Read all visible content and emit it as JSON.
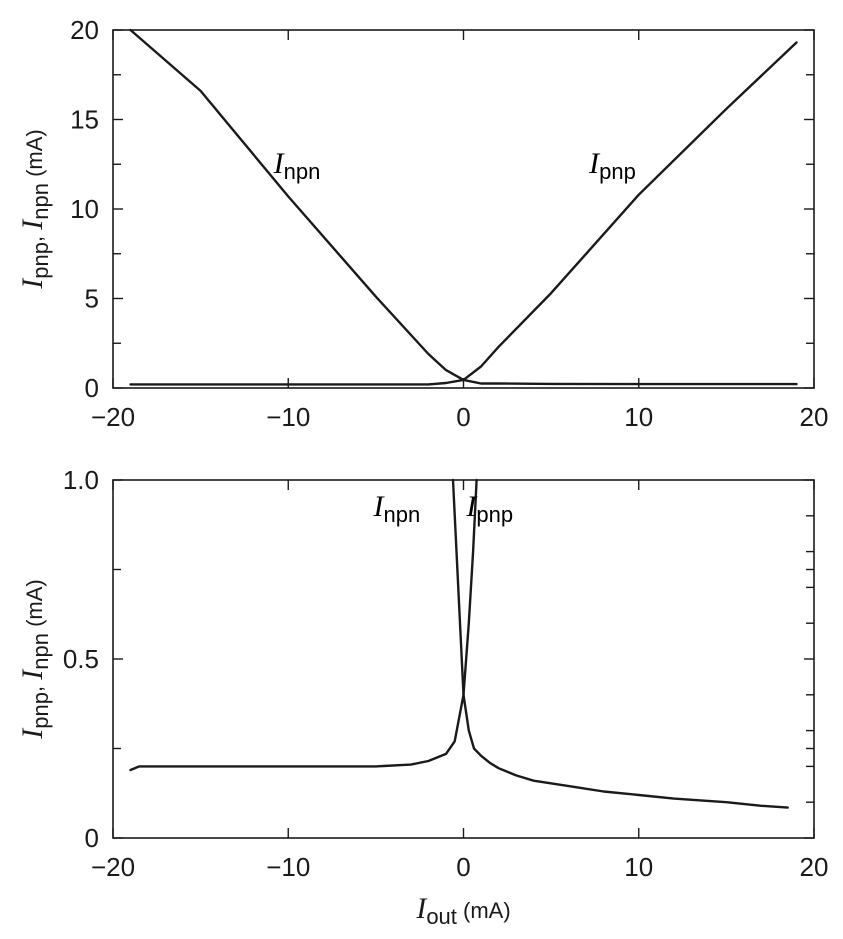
{
  "chart_data": [
    {
      "type": "line",
      "xlim": [
        -20,
        20
      ],
      "ylim": [
        0,
        20
      ],
      "x_ticks": [
        -20,
        -10,
        0,
        10,
        20
      ],
      "x_tick_labels": [
        "−20",
        "−10",
        "0",
        "10",
        "20"
      ],
      "y_ticks": [
        0,
        5,
        10,
        15,
        20
      ],
      "y_tick_labels": [
        "0",
        "5",
        "10",
        "15",
        "20"
      ],
      "ylabel": {
        "var1": "I",
        "sub1": "pnp",
        "sep": ", ",
        "var2": "I",
        "sub2": "npn",
        "unit": " (mA)"
      },
      "series": [
        {
          "name": "npn",
          "x": [
            -19,
            -15,
            -10,
            -5,
            -2,
            -1,
            0,
            1,
            2,
            5,
            10,
            15,
            19
          ],
          "y": [
            20,
            16.6,
            10.7,
            5.1,
            1.9,
            1.0,
            0.45,
            0.25,
            0.25,
            0.23,
            0.22,
            0.22,
            0.22
          ]
        },
        {
          "name": "pnp",
          "x": [
            -19,
            -15,
            -10,
            -5,
            -2,
            -1,
            0,
            1,
            2,
            5,
            10,
            15,
            19
          ],
          "y": [
            0.2,
            0.2,
            0.2,
            0.2,
            0.2,
            0.28,
            0.45,
            1.2,
            2.3,
            5.3,
            10.8,
            15.6,
            19.3
          ]
        }
      ],
      "annotations": [
        {
          "var": "I",
          "sub": "npn",
          "x": -9.5,
          "y": 12
        },
        {
          "var": "I",
          "sub": "pnp",
          "x": 8.5,
          "y": 12
        }
      ]
    },
    {
      "type": "line",
      "xlim": [
        -20,
        20
      ],
      "ylim": [
        0,
        1.0
      ],
      "x_ticks": [
        -20,
        -10,
        0,
        10,
        20
      ],
      "x_tick_labels": [
        "−20",
        "−10",
        "0",
        "10",
        "20"
      ],
      "y_ticks": [
        0,
        0.5,
        1.0
      ],
      "y_tick_labels": [
        "0",
        "0.5",
        "1.0"
      ],
      "y_minor_ticks": [
        0.25,
        0.75
      ],
      "ylabel": {
        "var1": "I",
        "sub1": "pnp",
        "sep": ", ",
        "var2": "I",
        "sub2": "npn",
        "unit": " (mA)"
      },
      "xlabel": {
        "var": "I",
        "sub": "out",
        "unit": " (mA)"
      },
      "series": [
        {
          "name": "npn",
          "x": [
            -19,
            -18.5,
            -15,
            -10,
            -5,
            -3,
            -2,
            -1,
            -0.5,
            0,
            0.3,
            0.6,
            1,
            1.5,
            2,
            3,
            4,
            6,
            8,
            10,
            12,
            15,
            17,
            18.5
          ],
          "y": [
            0.19,
            0.2,
            0.2,
            0.2,
            0.2,
            0.205,
            0.215,
            0.235,
            0.27,
            0.4,
            0.3,
            0.25,
            0.23,
            0.21,
            0.195,
            0.175,
            0.16,
            0.145,
            0.13,
            0.12,
            0.11,
            0.1,
            0.09,
            0.085
          ]
        },
        {
          "name": "npn-rise",
          "x": [
            -0.6,
            -0.4,
            -0.2,
            0
          ],
          "y": [
            1.0,
            0.8,
            0.6,
            0.4
          ]
        },
        {
          "name": "pnp-rise",
          "x": [
            0,
            0.3,
            0.55,
            0.75
          ],
          "y": [
            0.4,
            0.6,
            0.8,
            1.0
          ]
        }
      ],
      "annotations": [
        {
          "var": "I",
          "sub": "npn",
          "x": -3.8,
          "y": 0.9
        },
        {
          "var": "I",
          "sub": "pnp",
          "x": 1.5,
          "y": 0.9
        }
      ]
    }
  ]
}
